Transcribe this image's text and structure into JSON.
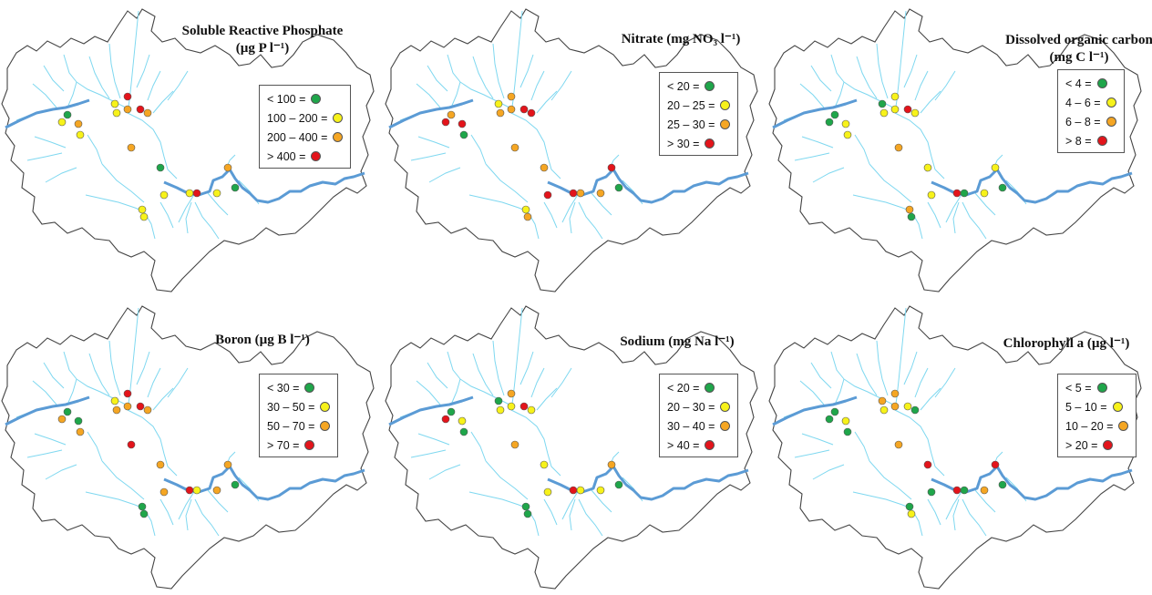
{
  "colors": {
    "outline": "#444444",
    "tributary": "#7fd8f0",
    "main_river": "#5b9bd5",
    "green": "#1fa64a",
    "yellow": "#f7f21a",
    "orange": "#f5a623",
    "red": "#e3141b"
  },
  "panels": [
    {
      "id": "srp",
      "title_line1": "Soluble Reactive Phosphate",
      "title_line2": "(µg P l⁻¹)",
      "legend": [
        {
          "label": "<  100  =",
          "color": "green"
        },
        {
          "label": "100 – 200 =",
          "color": "yellow"
        },
        {
          "label": "200 – 400 =",
          "color": "orange"
        },
        {
          "label": "> 400    =",
          "color": "red"
        }
      ],
      "sites": [
        "green",
        "yellow",
        "orange",
        "yellow",
        "yellow",
        "orange",
        "yellow",
        "red",
        "red",
        "orange",
        "orange",
        "green",
        "yellow",
        "yellow",
        "red",
        "yellow",
        "orange",
        "green",
        "yellow",
        "yellow"
      ]
    },
    {
      "id": "nitrate",
      "title_line1": "Nitrate (mg NO₃ l⁻¹)",
      "title_line2": "",
      "legend": [
        {
          "label": "< 20    =",
          "color": "green"
        },
        {
          "label": "20 – 25  =",
          "color": "yellow"
        },
        {
          "label": "25 – 30 =",
          "color": "orange"
        },
        {
          "label": "> 30    =",
          "color": "red"
        }
      ],
      "sites": [
        "orange",
        "red",
        "red",
        "green",
        "orange",
        "orange",
        "yellow",
        "orange",
        "red",
        "red",
        "orange",
        "orange",
        "red",
        "red",
        "orange",
        "orange",
        "red",
        "green",
        "yellow",
        "orange"
      ]
    },
    {
      "id": "doc",
      "title_line1": "Dissolved organic carbon",
      "title_line2": "(mg C l⁻¹)",
      "legend": [
        {
          "label": "< 4    =",
          "color": "green"
        },
        {
          "label": "4 – 6    =",
          "color": "yellow"
        },
        {
          "label": "6 – 8    =",
          "color": "orange"
        },
        {
          "label": "> 8     =",
          "color": "red"
        }
      ],
      "sites": [
        "green",
        "green",
        "yellow",
        "yellow",
        "yellow",
        "yellow",
        "green",
        "yellow",
        "red",
        "yellow",
        "orange",
        "yellow",
        "yellow",
        "red",
        "green",
        "yellow",
        "yellow",
        "green",
        "orange",
        "green"
      ]
    },
    {
      "id": "boron",
      "title_line1": "Boron (µg B l⁻¹)",
      "title_line2": "",
      "legend": [
        {
          "label": "< 30    =",
          "color": "green"
        },
        {
          "label": "30 – 50 =",
          "color": "yellow"
        },
        {
          "label": "50 – 70 =",
          "color": "orange"
        },
        {
          "label": "> 70     =",
          "color": "red"
        }
      ],
      "sites": [
        "green",
        "orange",
        "green",
        "orange",
        "orange",
        "orange",
        "yellow",
        "red",
        "red",
        "orange",
        "red",
        "orange",
        "orange",
        "red",
        "yellow",
        "orange",
        "orange",
        "green",
        "green",
        "green"
      ]
    },
    {
      "id": "sodium",
      "title_line1": "Sodium  (mg Na l⁻¹)",
      "title_line2": "",
      "legend": [
        {
          "label": "< 20    =",
          "color": "green"
        },
        {
          "label": "20 – 30 =",
          "color": "yellow"
        },
        {
          "label": "30 – 40 =",
          "color": "orange"
        },
        {
          "label": "> 40     =",
          "color": "red"
        }
      ],
      "sites": [
        "green",
        "red",
        "yellow",
        "green",
        "yellow",
        "yellow",
        "green",
        "orange",
        "red",
        "yellow",
        "orange",
        "yellow",
        "yellow",
        "red",
        "yellow",
        "yellow",
        "orange",
        "green",
        "green",
        "green"
      ]
    },
    {
      "id": "chla",
      "title_line1": "Chlorophyll a (µg l⁻¹)",
      "title_line2": "",
      "legend": [
        {
          "label": "< 5       =",
          "color": "green"
        },
        {
          "label": "5 – 10   =",
          "color": "yellow"
        },
        {
          "label": "10 – 20 =",
          "color": "orange"
        },
        {
          "label": "> 20    =",
          "color": "red"
        }
      ],
      "sites": [
        "green",
        "green",
        "yellow",
        "green",
        "yellow",
        "orange",
        "orange",
        "orange",
        "yellow",
        "green",
        "orange",
        "red",
        "green",
        "red",
        "green",
        "orange",
        "red",
        "green",
        "green",
        "yellow"
      ]
    }
  ]
}
